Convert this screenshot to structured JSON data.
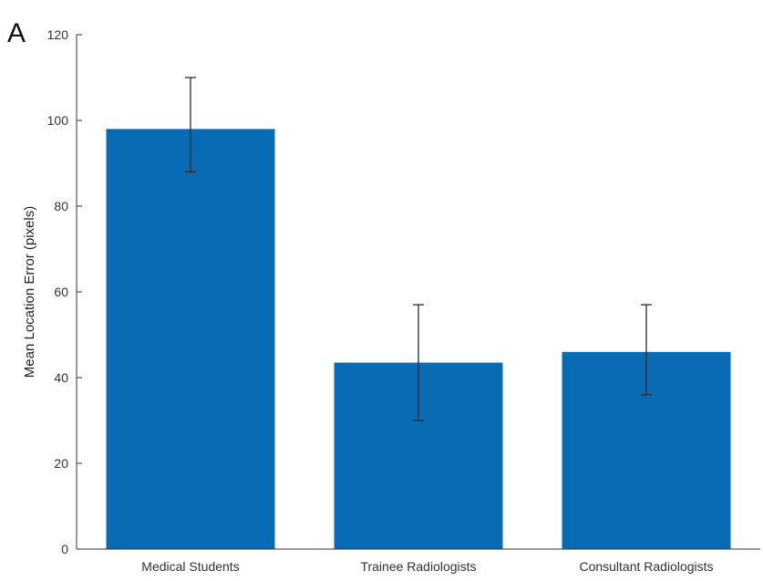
{
  "panel_label": "A",
  "chart_data": {
    "type": "bar",
    "categories": [
      "Medical Students",
      "Trainee Radiologists",
      "Consultant Radiologists"
    ],
    "values": [
      98,
      43.5,
      46
    ],
    "error_bars": [
      {
        "low": 88,
        "high": 110
      },
      {
        "low": 30,
        "high": 57
      },
      {
        "low": 36,
        "high": 57
      }
    ],
    "title": "",
    "xlabel": "",
    "ylabel": "Mean Location Error (pixels)",
    "ylim": [
      0,
      120
    ],
    "yticks": [
      0,
      20,
      40,
      60,
      80,
      100,
      120
    ],
    "grid": false,
    "bar_color": "#0a6bb5",
    "error_color": "#2b2b2b"
  }
}
